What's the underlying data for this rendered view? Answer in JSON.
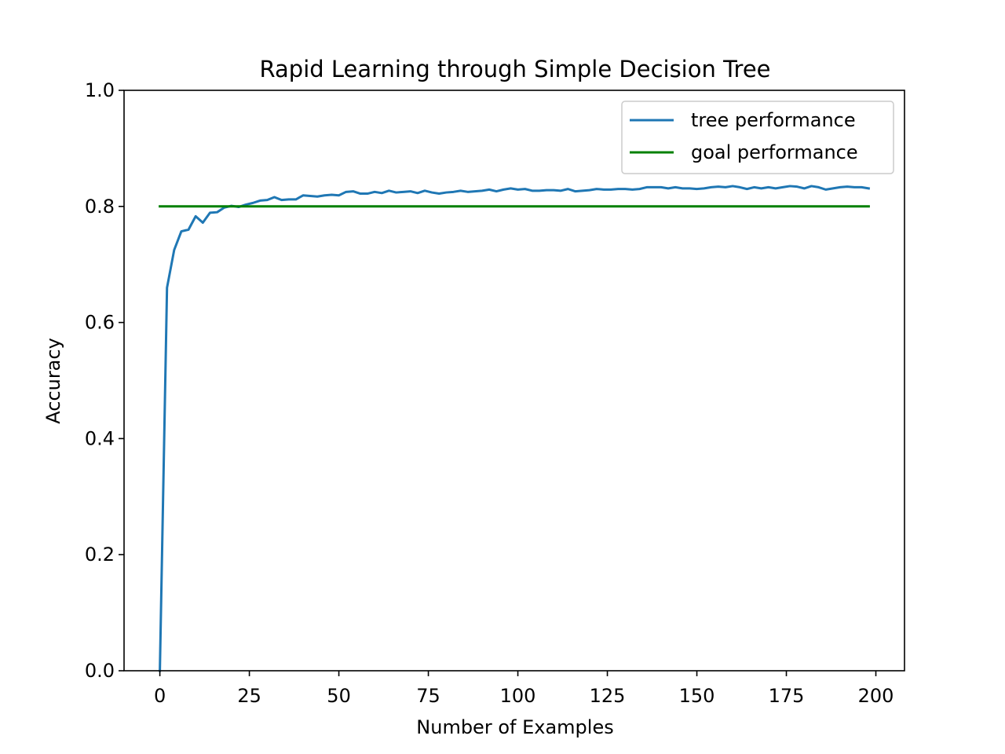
{
  "chart_data": {
    "type": "line",
    "title": "Rapid Learning through Simple Decision Tree",
    "xlabel": "Number of Examples",
    "ylabel": "Accuracy",
    "xlim": [
      -10,
      208
    ],
    "ylim": [
      0.0,
      1.0
    ],
    "x_ticks": [
      0,
      25,
      50,
      75,
      100,
      125,
      150,
      175,
      200
    ],
    "x_tick_labels": [
      "0",
      "25",
      "50",
      "75",
      "100",
      "125",
      "150",
      "175",
      "200"
    ],
    "y_ticks": [
      0.0,
      0.2,
      0.4,
      0.6,
      0.8,
      1.0
    ],
    "y_tick_labels": [
      "0.0",
      "0.2",
      "0.4",
      "0.6",
      "0.8",
      "1.0"
    ],
    "grid": false,
    "legend_position": "top-right",
    "series": [
      {
        "name": "tree performance",
        "color": "#1f77b4",
        "x": [
          0,
          2,
          4,
          6,
          8,
          10,
          12,
          14,
          16,
          18,
          20,
          22,
          24,
          26,
          28,
          30,
          32,
          34,
          36,
          38,
          40,
          42,
          44,
          46,
          48,
          50,
          52,
          54,
          56,
          58,
          60,
          62,
          64,
          66,
          68,
          70,
          72,
          74,
          76,
          78,
          80,
          82,
          84,
          86,
          88,
          90,
          92,
          94,
          96,
          98,
          100,
          102,
          104,
          106,
          108,
          110,
          112,
          114,
          116,
          118,
          120,
          122,
          124,
          126,
          128,
          130,
          132,
          134,
          136,
          138,
          140,
          142,
          144,
          146,
          148,
          150,
          152,
          154,
          156,
          158,
          160,
          162,
          164,
          166,
          168,
          170,
          172,
          174,
          176,
          178,
          180,
          182,
          184,
          186,
          188,
          190,
          192,
          194,
          196,
          198
        ],
        "values": [
          0.0,
          0.66,
          0.725,
          0.757,
          0.76,
          0.783,
          0.772,
          0.789,
          0.79,
          0.798,
          0.801,
          0.799,
          0.803,
          0.806,
          0.81,
          0.811,
          0.816,
          0.811,
          0.812,
          0.812,
          0.819,
          0.818,
          0.817,
          0.819,
          0.82,
          0.819,
          0.825,
          0.826,
          0.822,
          0.822,
          0.825,
          0.823,
          0.827,
          0.824,
          0.825,
          0.826,
          0.823,
          0.827,
          0.824,
          0.822,
          0.824,
          0.825,
          0.827,
          0.825,
          0.826,
          0.827,
          0.829,
          0.826,
          0.829,
          0.831,
          0.829,
          0.83,
          0.827,
          0.827,
          0.828,
          0.828,
          0.827,
          0.83,
          0.826,
          0.827,
          0.828,
          0.83,
          0.829,
          0.829,
          0.83,
          0.83,
          0.829,
          0.83,
          0.833,
          0.833,
          0.833,
          0.831,
          0.833,
          0.831,
          0.831,
          0.83,
          0.831,
          0.833,
          0.834,
          0.833,
          0.835,
          0.833,
          0.83,
          0.833,
          0.831,
          0.833,
          0.831,
          0.833,
          0.835,
          0.834,
          0.831,
          0.835,
          0.833,
          0.829,
          0.831,
          0.833,
          0.834,
          0.833,
          0.833,
          0.831
        ]
      },
      {
        "name": "goal performance",
        "color": "#008000",
        "x": [
          0,
          198
        ],
        "values": [
          0.8,
          0.8
        ]
      }
    ]
  }
}
